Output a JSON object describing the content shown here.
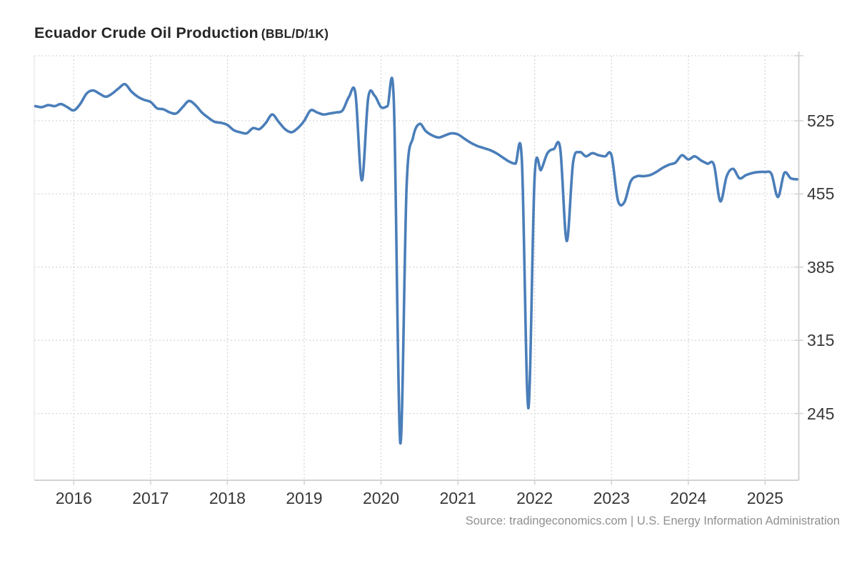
{
  "header": {
    "title": "Ecuador Crude Oil Production",
    "unit_label": "(BBL/D/1K)"
  },
  "footer": {
    "source": "Source: tradingeconomics.com | U.S. Energy Information Administration"
  },
  "colors": {
    "line": "#4a7eb9",
    "grid": "#d7d7d7",
    "axis": "#d2d2d2",
    "left_border": "#e6e6e6",
    "tick_text": "#383838",
    "title_text": "#262626",
    "source_text": "#8f8f8f",
    "background": "#ffffff"
  },
  "chart_data": {
    "type": "line",
    "title": "Ecuador Crude Oil Production",
    "ylabel": "BBL/D/1K",
    "xlabel": "",
    "legend": "none",
    "grid": "dotted",
    "frequency": "monthly",
    "x_range": [
      "2015-07",
      "2025-06"
    ],
    "y_axis_range": [
      181,
      587
    ],
    "y_ticks": [
      525,
      455,
      385,
      315,
      245
    ],
    "x_ticks": [
      "2016",
      "2017",
      "2018",
      "2019",
      "2020",
      "2021",
      "2022",
      "2023",
      "2024",
      "2025"
    ],
    "x": [
      "2015-07",
      "2015-08",
      "2015-09",
      "2015-10",
      "2015-11",
      "2015-12",
      "2016-01",
      "2016-02",
      "2016-03",
      "2016-04",
      "2016-05",
      "2016-06",
      "2016-07",
      "2016-08",
      "2016-09",
      "2016-10",
      "2016-11",
      "2016-12",
      "2017-01",
      "2017-02",
      "2017-03",
      "2017-04",
      "2017-05",
      "2017-06",
      "2017-07",
      "2017-08",
      "2017-09",
      "2017-10",
      "2017-11",
      "2017-12",
      "2018-01",
      "2018-02",
      "2018-03",
      "2018-04",
      "2018-05",
      "2018-06",
      "2018-07",
      "2018-08",
      "2018-09",
      "2018-10",
      "2018-11",
      "2018-12",
      "2019-01",
      "2019-02",
      "2019-03",
      "2019-04",
      "2019-05",
      "2019-06",
      "2019-07",
      "2019-08",
      "2019-09",
      "2019-10",
      "2019-11",
      "2019-12",
      "2020-01",
      "2020-02",
      "2020-03",
      "2020-04",
      "2020-05",
      "2020-06",
      "2020-07",
      "2020-08",
      "2020-09",
      "2020-10",
      "2020-11",
      "2020-12",
      "2021-01",
      "2021-02",
      "2021-03",
      "2021-04",
      "2021-05",
      "2021-06",
      "2021-07",
      "2021-08",
      "2021-09",
      "2021-10",
      "2021-11",
      "2021-12",
      "2022-01",
      "2022-02",
      "2022-03",
      "2022-04",
      "2022-05",
      "2022-06",
      "2022-07",
      "2022-08",
      "2022-09",
      "2022-10",
      "2022-11",
      "2022-12",
      "2023-01",
      "2023-02",
      "2023-03",
      "2023-04",
      "2023-05",
      "2023-06",
      "2023-07",
      "2023-08",
      "2023-09",
      "2023-10",
      "2023-11",
      "2023-12",
      "2024-01",
      "2024-02",
      "2024-03",
      "2024-04",
      "2024-05",
      "2024-06",
      "2024-07",
      "2024-08",
      "2024-09",
      "2024-10",
      "2024-11",
      "2024-12",
      "2025-01",
      "2025-02",
      "2025-03",
      "2025-04",
      "2025-05",
      "2025-06"
    ],
    "values": [
      539,
      538,
      540,
      539,
      541,
      538,
      535,
      541,
      551,
      554,
      551,
      548,
      551,
      556,
      560,
      553,
      548,
      545,
      543,
      537,
      536,
      533,
      532,
      538,
      544,
      540,
      533,
      528,
      524,
      523,
      521,
      516,
      514,
      513,
      518,
      517,
      523,
      531,
      524,
      517,
      514,
      518,
      525,
      535,
      533,
      531,
      532,
      533,
      535,
      548,
      551,
      468,
      547,
      549,
      538,
      539,
      543,
      217,
      463,
      509,
      522,
      515,
      511,
      509,
      511,
      513,
      512,
      508,
      504,
      501,
      499,
      497,
      494,
      490,
      486,
      484,
      487,
      250,
      472,
      478,
      494,
      498,
      498,
      410,
      485,
      495,
      491,
      494,
      492,
      491,
      492,
      449,
      447,
      467,
      472,
      472,
      473,
      476,
      480,
      483,
      485,
      492,
      488,
      491,
      487,
      484,
      483,
      448,
      472,
      479,
      470,
      473,
      475,
      476,
      476,
      474,
      452,
      475,
      470,
      469
    ]
  }
}
